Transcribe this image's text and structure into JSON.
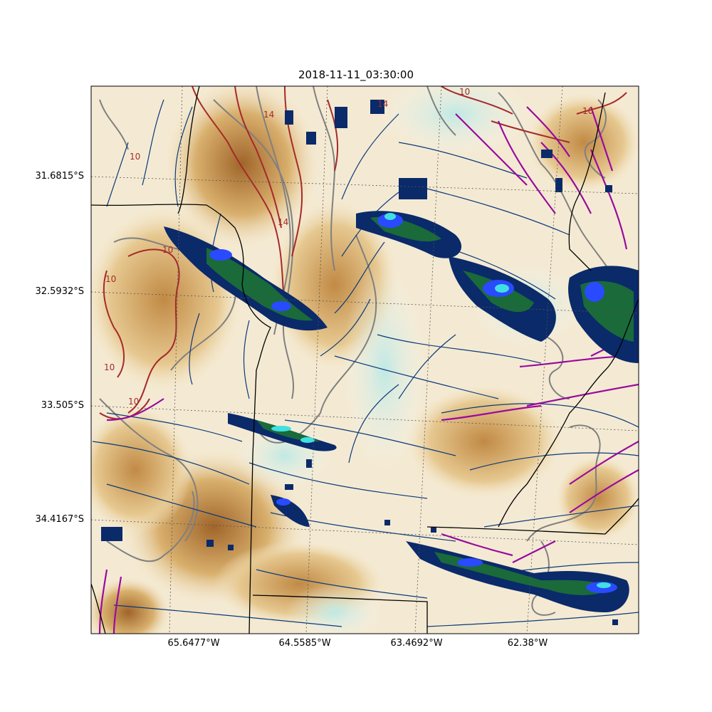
{
  "title": "2018-11-11_03:30:00",
  "lat_labels": [
    "31.6815°S",
    "32.5932°S",
    "33.505°S",
    "34.4167°S"
  ],
  "lon_labels": [
    "65.6477°W",
    "64.5585°W",
    "63.4692°W",
    "62.38°W"
  ],
  "contour_label": "10",
  "contour_label_2": "14",
  "colors": {
    "terrain_dark": "#a0652a",
    "terrain_mid": "#d9b06e",
    "terrain_light": "#f3e4c3",
    "moist_light": "#cdeee9",
    "gray_contour": "#808080",
    "red_contour": "#a52a2a",
    "streamline": "#0a3a7a",
    "strong_streamline": "#9a0aa0",
    "precip_dark": "#0a2a6a",
    "precip_green": "#1a6a3a",
    "precip_blue": "#2a4aff",
    "precip_cyan": "#40e0e0",
    "border": "#000000",
    "grid": "#555555"
  }
}
